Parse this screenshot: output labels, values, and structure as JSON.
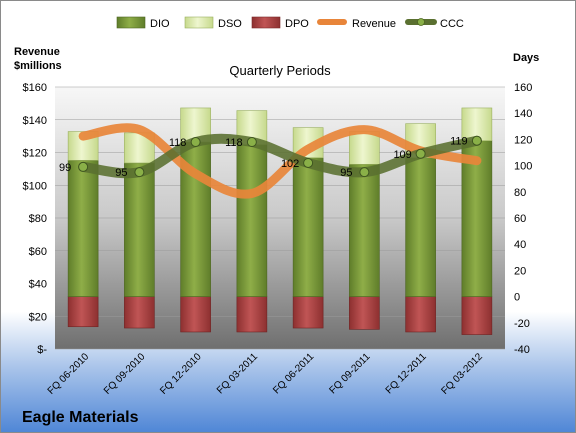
{
  "chart_data": {
    "type": "bar",
    "title": "Quarterly Periods",
    "company": "Eagle Materials",
    "left_axis_title": "Revenue\n$millions",
    "right_axis_title": "Days",
    "categories": [
      "FQ 06-2010",
      "FQ 09-2010",
      "FQ 12-2010",
      "FQ 03-2011",
      "FQ 06-2011",
      "FQ 09-2011",
      "FQ 12-2011",
      "FQ 03-2012"
    ],
    "left_ticks": [
      "$-",
      "$20",
      "$40",
      "$60",
      "$80",
      "$100",
      "$120",
      "$140",
      "$160"
    ],
    "left_range": [
      0,
      160
    ],
    "right_ticks": [
      "-40",
      "-20",
      "0",
      "20",
      "40",
      "60",
      "80",
      "100",
      "120",
      "140",
      "160"
    ],
    "right_range": [
      -40,
      160
    ],
    "legend": [
      "DIO",
      "DSO",
      "DPO",
      "Revenue",
      "CCC"
    ],
    "legend_position": "top",
    "series": [
      {
        "name": "DIO",
        "axis": "right",
        "values": [
          104,
          102,
          118,
          116,
          106,
          101,
          106,
          119
        ],
        "color": "#7a9a3a"
      },
      {
        "name": "DSO",
        "axis": "right",
        "values": [
          22,
          23,
          26,
          26,
          23,
          25,
          26,
          25
        ],
        "color": "#d8e8a8"
      },
      {
        "name": "DPO",
        "axis": "right",
        "values": [
          -23,
          -24,
          -27,
          -27,
          -24,
          -25,
          -27,
          -29
        ],
        "color": "#b04a4a"
      },
      {
        "name": "Revenue",
        "axis": "left",
        "values": [
          130,
          134,
          107,
          95,
          122,
          134,
          121,
          115
        ],
        "color": "#e8853a"
      },
      {
        "name": "CCC",
        "axis": "right",
        "values": [
          99,
          95,
          118,
          118,
          102,
          95,
          109,
          119
        ],
        "color": "#5a7030"
      }
    ],
    "ccc_labels": [
      "99",
      "95",
      "118",
      "118",
      "102",
      "95",
      "109",
      "119"
    ]
  }
}
